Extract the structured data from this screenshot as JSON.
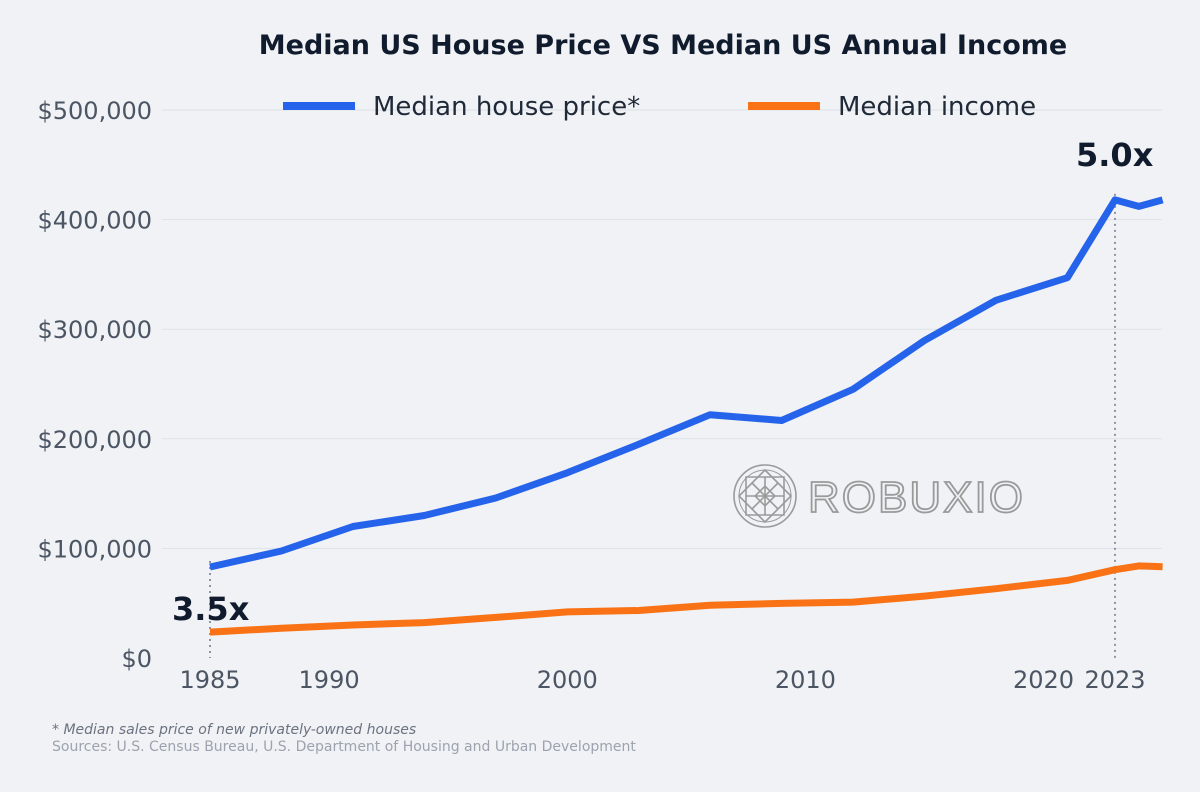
{
  "chart_data": {
    "type": "line",
    "title": "Median US House Price VS Median US Annual Income",
    "xlabel": "",
    "ylabel": "",
    "xlim": [
      1985,
      2025
    ],
    "ylim": [
      0,
      500000
    ],
    "grid": true,
    "legend_position": "top",
    "y_ticks": [
      {
        "value": 0,
        "label": "$0"
      },
      {
        "value": 100000,
        "label": "$100,000"
      },
      {
        "value": 200000,
        "label": "$200,000"
      },
      {
        "value": 300000,
        "label": "$300,000"
      },
      {
        "value": 400000,
        "label": "$400,000"
      },
      {
        "value": 500000,
        "label": "$500,000"
      }
    ],
    "x_ticks": [
      {
        "value": 1985,
        "label": "1985"
      },
      {
        "value": 1990,
        "label": "1990"
      },
      {
        "value": 2000,
        "label": "2000"
      },
      {
        "value": 2010,
        "label": "2010"
      },
      {
        "value": 2020,
        "label": "2020"
      },
      {
        "value": 2023,
        "label": "2023"
      }
    ],
    "series": [
      {
        "name": "Median house price*",
        "color": "#2563eb",
        "x": [
          1985,
          1988,
          1991,
          1994,
          1997,
          2000,
          2003,
          2006,
          2009,
          2012,
          2015,
          2018,
          2021,
          2023,
          2024,
          2025
        ],
        "values": [
          83000,
          97600,
          120000,
          130000,
          146000,
          169000,
          195000,
          222000,
          216700,
          245200,
          289700,
          326400,
          347000,
          418000,
          412000,
          418000
        ]
      },
      {
        "name": "Median income",
        "color": "#f97316",
        "x": [
          1985,
          1988,
          1991,
          1994,
          1997,
          2000,
          2003,
          2006,
          2009,
          2012,
          2015,
          2018,
          2021,
          2023,
          2024,
          2025
        ],
        "values": [
          23600,
          27200,
          30100,
          32300,
          37000,
          42100,
          43300,
          48200,
          49800,
          51000,
          56500,
          63200,
          70800,
          80600,
          84000,
          83200
        ]
      }
    ],
    "annotations": [
      {
        "text": "3.5x",
        "x": 1985
      },
      {
        "text": "5.0x",
        "x": 2023
      }
    ]
  },
  "watermark": {
    "text": "ROBUXIO"
  },
  "footnote": "* Median sales price of new privately-owned houses",
  "sources": "Sources: U.S. Census Bureau, U.S. Department of Housing and Urban Development"
}
